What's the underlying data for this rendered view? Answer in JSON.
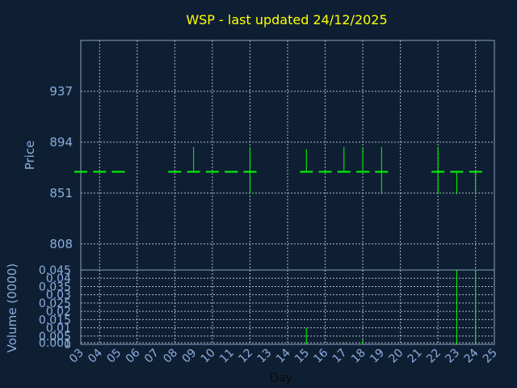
{
  "chart_data": [
    {
      "type": "candlestick",
      "title": "WSP - last updated 24/12/2025",
      "ylabel": "Price",
      "xlabel": "Day",
      "ylim": [
        786,
        980
      ],
      "yticks": [
        "808",
        "851",
        "894",
        "937"
      ],
      "grid": true,
      "colors": {
        "background": "#0f1f33",
        "frame": "#8aa0c0",
        "grid": "#b0b8c8",
        "mark": "#00ff00",
        "title": "#ffff00",
        "tick": "#8aaee0"
      },
      "x_ticks": [
        "03",
        "04",
        "05",
        "06",
        "07",
        "08",
        "09",
        "10",
        "11",
        "12",
        "13",
        "14",
        "15",
        "16",
        "17",
        "18",
        "19",
        "20",
        "21",
        "22",
        "23",
        "24",
        "25"
      ],
      "bars": [
        {
          "day": 3,
          "open": 869,
          "close": 869,
          "high": 869,
          "low": 869
        },
        {
          "day": 4,
          "open": 869,
          "close": 869,
          "high": 869,
          "low": 869
        },
        {
          "day": 5,
          "open": 869,
          "close": 869,
          "high": 869,
          "low": 869
        },
        {
          "day": 8,
          "open": 869,
          "close": 869,
          "high": 869,
          "low": 869
        },
        {
          "day": 9,
          "open": 869,
          "close": 869,
          "high": 890,
          "low": 869
        },
        {
          "day": 10,
          "open": 869,
          "close": 869,
          "high": 869,
          "low": 869
        },
        {
          "day": 11,
          "open": 869,
          "close": 869,
          "high": 869,
          "low": 869
        },
        {
          "day": 12,
          "open": 869,
          "close": 869,
          "high": 890,
          "low": 850
        },
        {
          "day": 15,
          "open": 869,
          "close": 869,
          "high": 888,
          "low": 869
        },
        {
          "day": 16,
          "open": 869,
          "close": 869,
          "high": 869,
          "low": 869
        },
        {
          "day": 17,
          "open": 869,
          "close": 869,
          "high": 890,
          "low": 869
        },
        {
          "day": 18,
          "open": 869,
          "close": 869,
          "high": 890,
          "low": 869
        },
        {
          "day": 19,
          "open": 869,
          "close": 869,
          "high": 890,
          "low": 850
        },
        {
          "day": 22,
          "open": 869,
          "close": 869,
          "high": 890,
          "low": 850
        },
        {
          "day": 23,
          "open": 869,
          "close": 869,
          "high": 869,
          "low": 850
        },
        {
          "day": 24,
          "open": 869,
          "close": 869,
          "high": 869,
          "low": 850
        }
      ]
    },
    {
      "type": "bar",
      "ylabel": "Volume (0000)",
      "xlabel": "Day",
      "ylim": [
        0,
        0.045
      ],
      "yticks": [
        "0",
        "0.001",
        "0.005",
        "0.01",
        "0.015",
        "0.02",
        "0.025",
        "0.03",
        "0.035",
        "0.04",
        "0.045"
      ],
      "ytick_values": [
        0,
        0.001,
        0.005,
        0.01,
        0.015,
        0.02,
        0.025,
        0.03,
        0.035,
        0.04,
        0.045
      ],
      "x_ticks": [
        "03",
        "04",
        "05",
        "06",
        "07",
        "08",
        "09",
        "10",
        "11",
        "12",
        "13",
        "14",
        "15",
        "16",
        "17",
        "18",
        "19",
        "20",
        "21",
        "22",
        "23",
        "24",
        "25"
      ],
      "bars": [
        {
          "day": 15,
          "value": 0.01
        },
        {
          "day": 17,
          "value": 0.001
        },
        {
          "day": 18,
          "value": 0.003
        },
        {
          "day": 23,
          "value": 0.045
        },
        {
          "day": 24,
          "value": 0.045
        }
      ]
    }
  ]
}
